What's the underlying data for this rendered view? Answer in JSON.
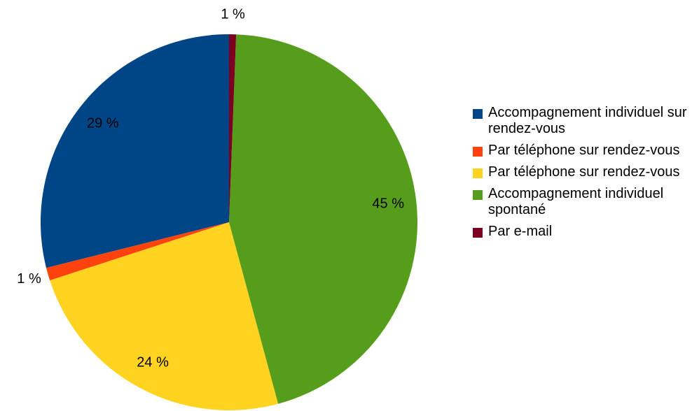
{
  "chart_data": {
    "type": "pie",
    "categories": [
      "Accompagnement indi­viduel sur rendez-vous",
      "Par téléphone sur rendez-vous",
      "Par téléphone sur rendez-vous",
      "Accompagnement indi­viduel spontané",
      "Par e-mail"
    ],
    "values": [
      28.9,
      1.1,
      24.2,
      45.2,
      0.6
    ],
    "value_labels": [
      "29 %",
      "1 %",
      "24 %",
      "45 %",
      "1 %"
    ],
    "colors": [
      "#004586",
      "#ff420e",
      "#ffd320",
      "#579d1c",
      "#7e0021"
    ],
    "legend": "right"
  }
}
